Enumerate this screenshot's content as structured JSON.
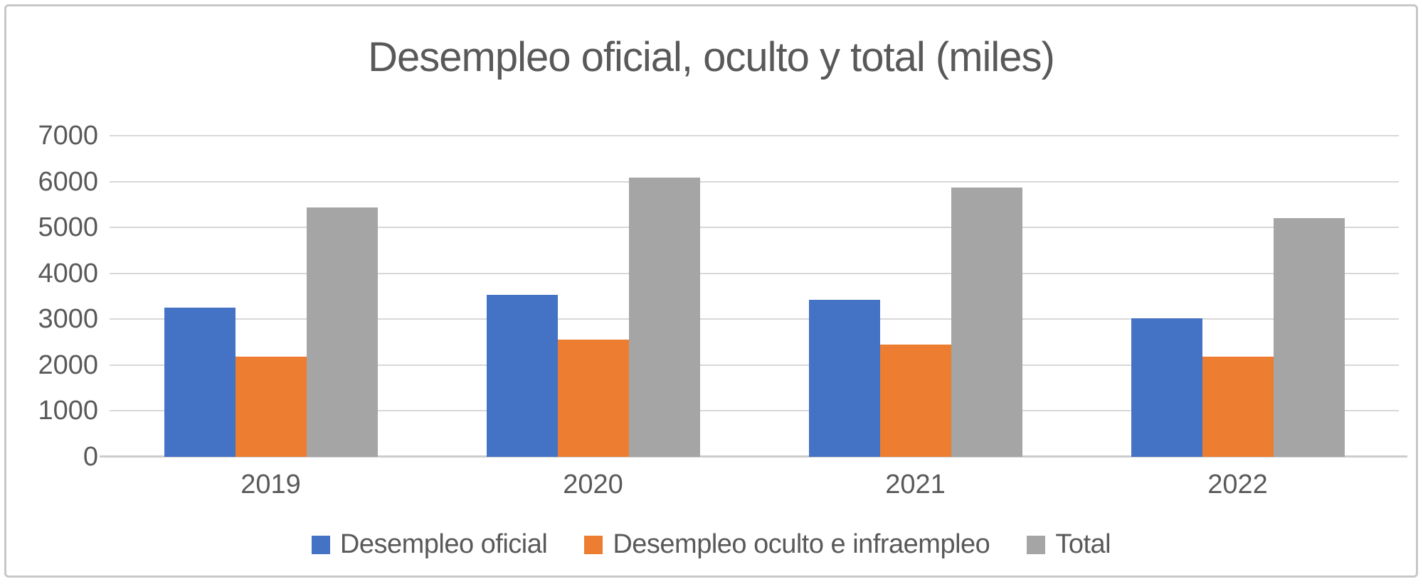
{
  "window": {
    "background": "#ffffff",
    "border_color": "#c7c7c7"
  },
  "chart_data": {
    "type": "bar",
    "title": "Desempleo oficial, oculto y total (miles)",
    "categories": [
      "2019",
      "2020",
      "2021",
      "2022"
    ],
    "series": [
      {
        "name": "Desempleo oficial",
        "color": "#4472C4",
        "values": [
          3250,
          3530,
          3430,
          3020
        ]
      },
      {
        "name": "Desempleo oculto e infraempleo",
        "color": "#ED7D31",
        "values": [
          2190,
          2550,
          2440,
          2190
        ]
      },
      {
        "name": "Total",
        "color": "#A5A5A5",
        "values": [
          5440,
          6080,
          5870,
          5210
        ]
      }
    ],
    "xlabel": "",
    "ylabel": "",
    "ylim": [
      0,
      7000
    ],
    "ytick_step": 1000,
    "ytick_labels": [
      "0",
      "1000",
      "2000",
      "3000",
      "4000",
      "5000",
      "6000",
      "7000"
    ],
    "grid": true,
    "legend_position": "bottom",
    "text_color": "#595959",
    "gridline_color": "#d8d8d8",
    "axis_line_color": "#cccccc"
  }
}
